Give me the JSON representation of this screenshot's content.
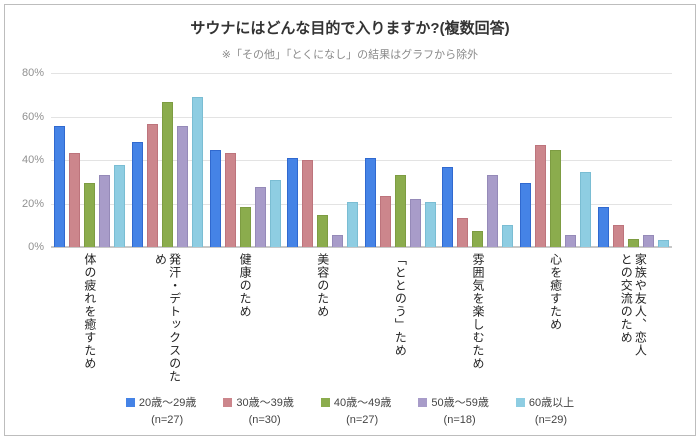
{
  "frame": {
    "background": "#ffffff",
    "border_color": "#bdbdbd"
  },
  "chart_data": {
    "type": "bar",
    "title": "サウナにはどんな目的で入りますか?(複数回答)",
    "subtitle": "※「その他」「とくになし」の結果はグラフから除外",
    "xlabel": "",
    "ylabel": "",
    "ylim": [
      0,
      80
    ],
    "y_ticks": [
      "80%",
      "60%",
      "40%",
      "20%",
      "0%"
    ],
    "grid": "horizontal",
    "legend_position": "bottom",
    "categories": [
      "体の疲れを癒すため",
      "発汗・デトックスのため",
      "健康のため",
      "美容のため",
      "「ととのう」ため",
      "雰囲気を楽しむため",
      "心を癒すため",
      "家族や友人、恋人\nとの交流のため"
    ],
    "series": [
      {
        "name": "20歳〜29歳",
        "n_label": "(n=27)",
        "color": "#4583e6",
        "border_color": "#3069cf",
        "values": [
          55.6,
          48.1,
          44.4,
          40.7,
          40.7,
          37.0,
          29.6,
          18.5
        ]
      },
      {
        "name": "30歳〜39歳",
        "n_label": "(n=30)",
        "color": "#cc868c",
        "border_color": "#bd747c",
        "values": [
          43.3,
          56.7,
          43.3,
          40.0,
          23.3,
          13.3,
          46.7,
          10.0
        ]
      },
      {
        "name": "40歳〜49歳",
        "n_label": "(n=27)",
        "color": "#8bac4d",
        "border_color": "#7d9c42",
        "values": [
          29.6,
          66.7,
          18.5,
          14.8,
          33.3,
          7.4,
          44.4,
          3.7
        ]
      },
      {
        "name": "50歳〜59歳",
        "n_label": "(n=18)",
        "color": "#a89cc9",
        "border_color": "#958ab8",
        "values": [
          33.3,
          55.6,
          27.8,
          5.6,
          22.2,
          33.3,
          5.6,
          5.6
        ]
      },
      {
        "name": "60歳以上",
        "n_label": "(n=29)",
        "color": "#8ecde2",
        "border_color": "#7abdd3",
        "values": [
          37.9,
          69.0,
          31.0,
          20.7,
          20.7,
          10.3,
          34.5,
          3.4
        ]
      }
    ]
  }
}
